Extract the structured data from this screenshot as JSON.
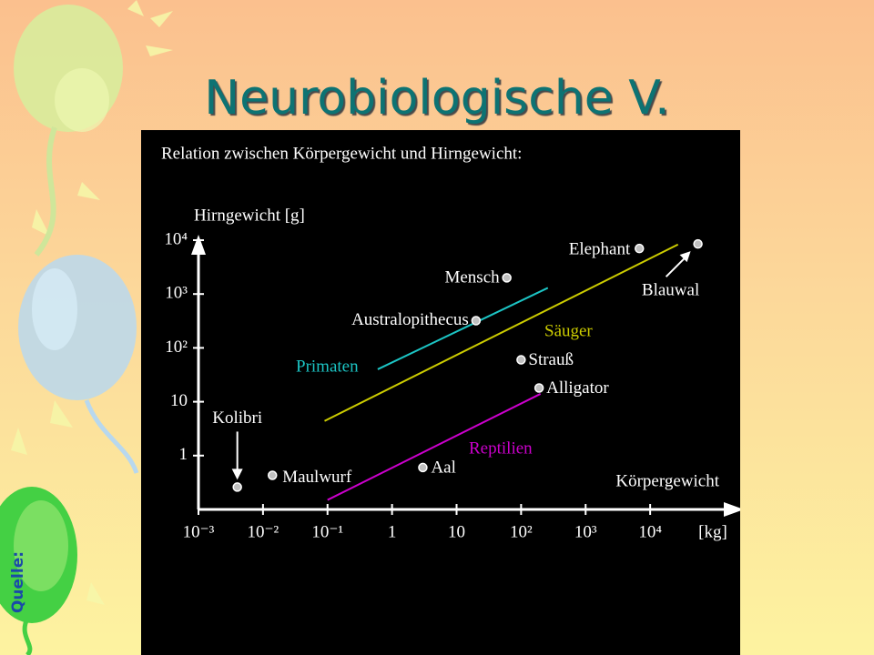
{
  "slide": {
    "title": "Neurobiologische V.",
    "source_label": "Quelle:"
  },
  "chart_data": {
    "type": "scatter",
    "title": "Relation zwischen Körpergewicht und Hirngewicht:",
    "y_label": "Hirngewicht [g]",
    "x_label": "Körpergewicht",
    "x_unit": "[kg]",
    "xscale": "log",
    "yscale": "log",
    "xlim": [
      0.001,
      100000
    ],
    "ylim": [
      0.1,
      10000
    ],
    "xticks": [
      {
        "value": 0.001,
        "label": "10⁻³"
      },
      {
        "value": 0.01,
        "label": "10⁻²"
      },
      {
        "value": 0.1,
        "label": "10⁻¹"
      },
      1,
      10,
      {
        "value": 100,
        "label": "10²"
      },
      {
        "value": 1000,
        "label": "10³"
      },
      {
        "value": 10000,
        "label": "10⁴"
      }
    ],
    "yticks": [
      1,
      10,
      {
        "value": 100,
        "label": "10²"
      },
      {
        "value": 1000,
        "label": "10³"
      },
      {
        "value": 10000,
        "label": "10⁴"
      }
    ],
    "point_color": "#c0c0c0",
    "points": [
      {
        "name": "Kolibri",
        "x": 0.004,
        "y": 0.26
      },
      {
        "name": "Maulwurf",
        "x": 0.014,
        "y": 0.43
      },
      {
        "name": "Aal",
        "x": 3,
        "y": 0.6
      },
      {
        "name": "Alligator",
        "x": 190,
        "y": 18
      },
      {
        "name": "Strauß",
        "x": 100,
        "y": 60
      },
      {
        "name": "Australopithecus",
        "x": 20,
        "y": 320
      },
      {
        "name": "Mensch",
        "x": 60,
        "y": 2000
      },
      {
        "name": "Elephant",
        "x": 6800,
        "y": 7000
      },
      {
        "name": "Blauwal",
        "x": 55000,
        "y": 8500
      }
    ],
    "lines": [
      {
        "name": "Primaten",
        "color": "#1cc4c4",
        "x": [
          0.6,
          260
        ],
        "y": [
          40,
          1300
        ]
      },
      {
        "name": "Säuger",
        "color": "#cccc00",
        "x": [
          0.09,
          27000
        ],
        "y": [
          4.4,
          8300
        ]
      },
      {
        "name": "Reptilien",
        "color": "#cc00cc",
        "x": [
          0.1,
          200
        ],
        "y": [
          0.15,
          14
        ]
      }
    ]
  }
}
